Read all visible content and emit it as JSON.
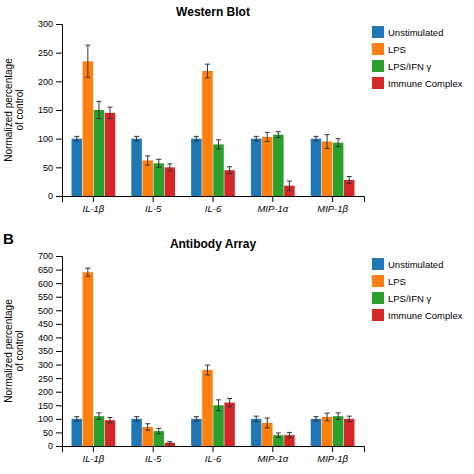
{
  "chart_data": [
    {
      "type": "bar",
      "title": "Western Blot",
      "categories": [
        "IL-1β",
        "IL-5",
        "IL-6",
        "MIP-1α",
        "MIP-1β"
      ],
      "series": [
        {
          "name": "Unstimulated",
          "values": [
            100,
            100,
            100,
            100,
            100
          ],
          "errors": [
            4,
            4,
            4,
            4,
            4
          ]
        },
        {
          "name": "LPS",
          "values": [
            235,
            62,
            218,
            103,
            95
          ],
          "errors": [
            28,
            8,
            12,
            8,
            12
          ]
        },
        {
          "name": "LPS/IFN γ",
          "values": [
            150,
            57,
            90,
            107,
            93
          ],
          "errors": [
            15,
            7,
            8,
            5,
            7
          ]
        },
        {
          "name": "Immune Complex",
          "values": [
            145,
            50,
            45,
            18,
            28
          ],
          "errors": [
            10,
            6,
            6,
            8,
            6
          ]
        }
      ],
      "ylabel": "Normalized percentage\nof control",
      "ylim": [
        0,
        300
      ],
      "yticks": [
        0,
        50,
        100,
        150,
        200,
        250,
        300
      ],
      "grid": false,
      "legend": "right"
    },
    {
      "type": "bar",
      "title": "Antibody Array",
      "categories": [
        "IL-1β",
        "IL-5",
        "IL-6",
        "MIP-1α",
        "MIP-1β"
      ],
      "series": [
        {
          "name": "Unstimulated",
          "values": [
            100,
            100,
            100,
            100,
            100
          ],
          "errors": [
            8,
            8,
            8,
            10,
            8
          ]
        },
        {
          "name": "LPS",
          "values": [
            640,
            70,
            280,
            85,
            107
          ],
          "errors": [
            15,
            12,
            18,
            18,
            14
          ]
        },
        {
          "name": "LPS/IFN γ",
          "values": [
            110,
            55,
            150,
            40,
            110
          ],
          "errors": [
            12,
            10,
            20,
            8,
            12
          ]
        },
        {
          "name": "Immune Complex",
          "values": [
            95,
            12,
            160,
            40,
            100
          ],
          "errors": [
            10,
            4,
            15,
            10,
            10
          ]
        }
      ],
      "ylabel": "Normalized percentage\nof control",
      "ylim": [
        0,
        700
      ],
      "yticks": [
        0,
        50,
        100,
        150,
        200,
        250,
        300,
        350,
        400,
        450,
        500,
        550,
        600,
        650,
        700
      ],
      "grid": false,
      "legend": "right",
      "annotations": [
        "B"
      ]
    }
  ]
}
